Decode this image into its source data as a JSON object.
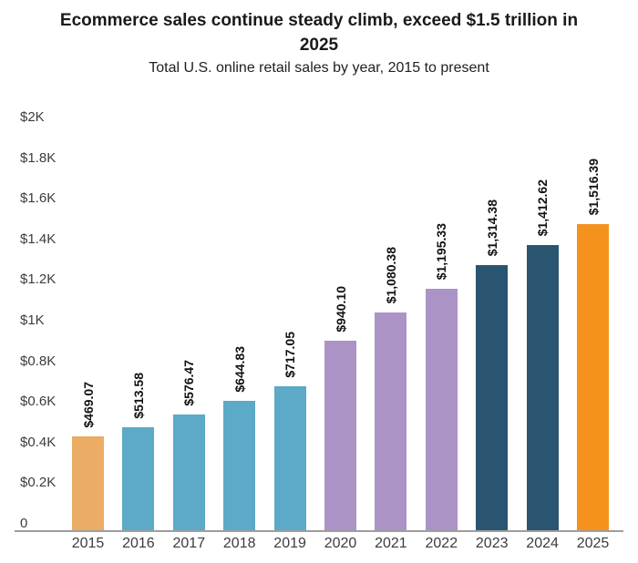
{
  "header": {
    "title_line1": "Ecommerce sales continue steady climb, exceed $1.5 trillion in",
    "title_line2": "2025",
    "subtitle": "Total U.S. online retail sales by year, 2015 to present"
  },
  "chart_data": {
    "type": "bar",
    "title": "Ecommerce sales continue steady climb, exceed $1.5 trillion in 2025",
    "subtitle": "Total U.S. online retail sales by year, 2015 to present",
    "xlabel": "",
    "ylabel": "",
    "ylim": [
      0,
      2000
    ],
    "grid": false,
    "legend": false,
    "categories": [
      "2015",
      "2016",
      "2017",
      "2018",
      "2019",
      "2020",
      "2021",
      "2022",
      "2023",
      "2024",
      "2025"
    ],
    "values": [
      469.07,
      513.58,
      576.47,
      644.83,
      717.05,
      940.1,
      1080.38,
      1195.33,
      1314.38,
      1412.62,
      1516.39
    ],
    "bar_labels": [
      "$469.07",
      "$513.58",
      "$576.47",
      "$644.83",
      "$717.05",
      "$940.10",
      "$1,080.38",
      "$1,195.33",
      "$1,314.38",
      "$1,412.62",
      "$1,516.39"
    ],
    "bar_colors": [
      "#EBAC66",
      "#5CA9C8",
      "#5CA9C8",
      "#5CA9C8",
      "#5CA9C8",
      "#AB93C6",
      "#AB93C6",
      "#AB93C6",
      "#2A5570",
      "#2A5570",
      "#F5921E"
    ],
    "y_ticks": [
      {
        "label": "$2K",
        "value": 2000
      },
      {
        "label": "$1.8K",
        "value": 1800
      },
      {
        "label": "$1.6K",
        "value": 1600
      },
      {
        "label": "$1.4K",
        "value": 1400
      },
      {
        "label": "$1.2K",
        "value": 1200
      },
      {
        "label": "$1K",
        "value": 1000
      },
      {
        "label": "$0.8K",
        "value": 800
      },
      {
        "label": "$0.6K",
        "value": 600
      },
      {
        "label": "$0.4K",
        "value": 400
      },
      {
        "label": "$0.2K",
        "value": 200
      },
      {
        "label": "0",
        "value": 0
      }
    ],
    "colors": {
      "axis_line": "#9E9E9E",
      "title_text": "#1A1A1A",
      "axis_label_text": "#3C3C3C",
      "bar_value_text": "#111111"
    }
  }
}
